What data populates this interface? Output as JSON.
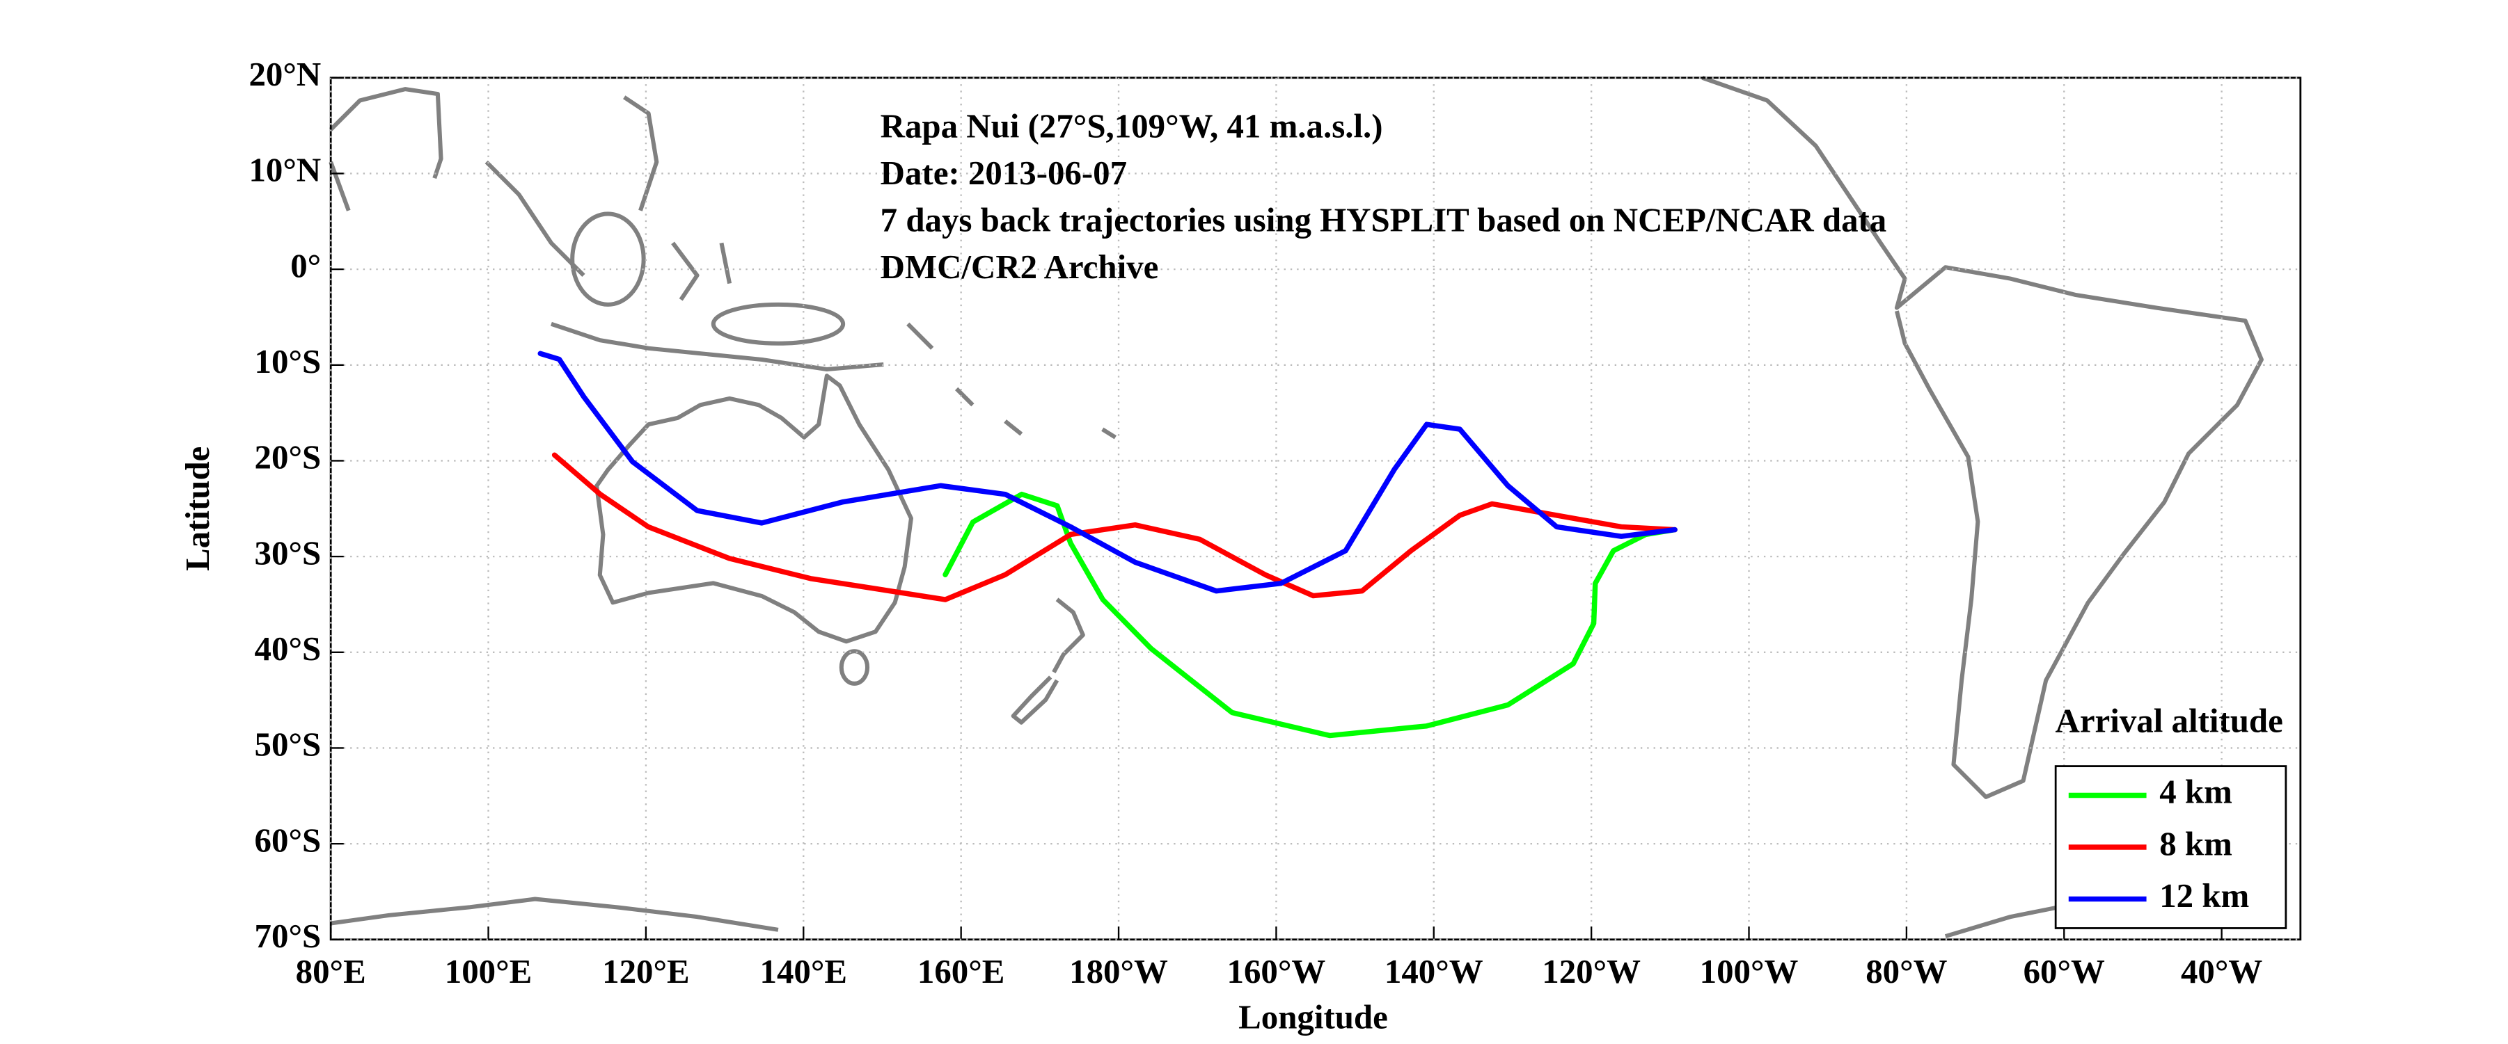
{
  "chart_data": {
    "type": "line",
    "xlabel": "Longitude",
    "ylabel": "Latitude",
    "annotations": [
      "Rapa Nui (27°S,109°W, 41 m.a.s.l.)",
      "Date: 2013-06-07",
      "7 days back trajectories using HYSPLIT based on NCEP/NCAR data",
      "DMC/CR2 Archive"
    ],
    "legend_title": "Arrival altitude",
    "legend_loc": "lower right",
    "grid": true,
    "xlim": [
      80,
      330
    ],
    "ylim": [
      -70,
      20
    ],
    "xticks": [
      {
        "value": 80,
        "label": "80°E"
      },
      {
        "value": 100,
        "label": "100°E"
      },
      {
        "value": 120,
        "label": "120°E"
      },
      {
        "value": 140,
        "label": "140°E"
      },
      {
        "value": 160,
        "label": "160°E"
      },
      {
        "value": 180,
        "label": "180°W"
      },
      {
        "value": 200,
        "label": "160°W"
      },
      {
        "value": 220,
        "label": "140°W"
      },
      {
        "value": 240,
        "label": "120°W"
      },
      {
        "value": 260,
        "label": "100°W"
      },
      {
        "value": 280,
        "label": "80°W"
      },
      {
        "value": 300,
        "label": "60°W"
      },
      {
        "value": 320,
        "label": "40°W"
      }
    ],
    "yticks": [
      {
        "value": -70,
        "label": "70°S"
      },
      {
        "value": -60,
        "label": "60°S"
      },
      {
        "value": -50,
        "label": "50°S"
      },
      {
        "value": -40,
        "label": "40°S"
      },
      {
        "value": -30,
        "label": "30°S"
      },
      {
        "value": -20,
        "label": "20°S"
      },
      {
        "value": -10,
        "label": "10°S"
      },
      {
        "value": 0,
        "label": "0°"
      },
      {
        "value": 10,
        "label": "10°N"
      },
      {
        "value": 20,
        "label": "20°N"
      }
    ],
    "series": [
      {
        "name": "4 km",
        "color": "#00ff00",
        "x": [
          158.0,
          161.5,
          167.7,
          172.2,
          173.9,
          178.0,
          184.1,
          194.4,
          206.8,
          219.1,
          229.4,
          237.7,
          240.3,
          240.5,
          242.8,
          246.9,
          250.6
        ],
        "values": [
          -31.9,
          -26.4,
          -23.5,
          -24.7,
          -28.6,
          -34.5,
          -39.6,
          -46.3,
          -48.7,
          -47.7,
          -45.5,
          -41.2,
          -37.0,
          -32.8,
          -29.4,
          -27.7,
          -27.2
        ]
      },
      {
        "name": "8 km",
        "color": "#ff0000",
        "x": [
          108.4,
          114.2,
          120.3,
          130.6,
          140.9,
          158.0,
          165.6,
          173.9,
          182.1,
          190.3,
          198.6,
          204.7,
          210.9,
          217.1,
          223.3,
          227.4,
          235.6,
          243.8,
          250.6
        ],
        "values": [
          -19.4,
          -23.5,
          -26.9,
          -30.2,
          -32.3,
          -34.5,
          -31.9,
          -27.7,
          -26.7,
          -28.2,
          -31.9,
          -34.1,
          -33.6,
          -29.4,
          -25.7,
          -24.5,
          -25.7,
          -26.9,
          -27.2
        ]
      },
      {
        "name": "12 km",
        "color": "#0000ff",
        "x": [
          106.6,
          109.0,
          112.1,
          118.3,
          126.5,
          134.7,
          145.0,
          157.4,
          165.6,
          173.9,
          182.1,
          192.4,
          200.6,
          208.8,
          215.0,
          219.1,
          223.3,
          229.4,
          235.6,
          243.8,
          250.6
        ],
        "values": [
          -8.8,
          -9.4,
          -13.3,
          -20.1,
          -25.2,
          -26.5,
          -24.3,
          -22.6,
          -23.5,
          -26.9,
          -30.6,
          -33.6,
          -32.8,
          -29.4,
          -20.9,
          -16.2,
          -16.7,
          -22.6,
          -26.9,
          -27.9,
          -27.2
        ]
      }
    ]
  }
}
